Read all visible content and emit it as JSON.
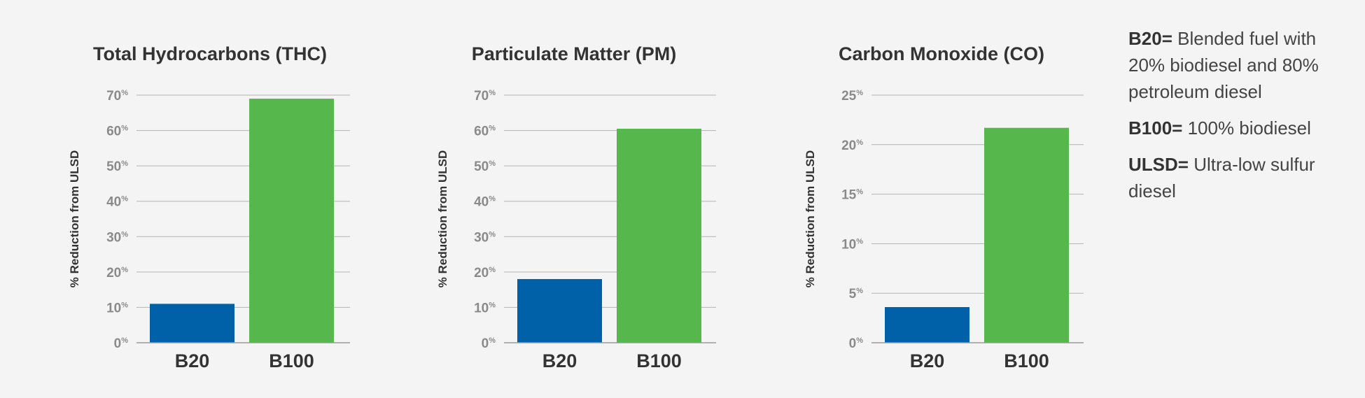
{
  "chart_data": [
    {
      "type": "bar",
      "title": "Total Hydrocarbons (THC)",
      "ylabel": "% Reduction from ULSD",
      "xlabel": "",
      "categories": [
        "B20",
        "B100"
      ],
      "values": [
        11,
        69
      ],
      "bar_colors": [
        "#0061a8",
        "#56b84c"
      ],
      "ylim": [
        0,
        70
      ],
      "yticks": [
        0,
        10,
        20,
        30,
        40,
        50,
        60,
        70
      ],
      "ytick_labels": [
        "0",
        "10",
        "20",
        "30",
        "40",
        "50",
        "60",
        "70"
      ],
      "tick_suffix": "%",
      "grid": true
    },
    {
      "type": "bar",
      "title": "Particulate Matter (PM)",
      "ylabel": "% Reduction from ULSD",
      "xlabel": "",
      "categories": [
        "B20",
        "B100"
      ],
      "values": [
        18,
        60.5
      ],
      "bar_colors": [
        "#0061a8",
        "#56b84c"
      ],
      "ylim": [
        0,
        70
      ],
      "yticks": [
        0,
        10,
        20,
        30,
        40,
        50,
        60,
        70
      ],
      "ytick_labels": [
        "0",
        "10",
        "20",
        "30",
        "40",
        "50",
        "60",
        "70"
      ],
      "tick_suffix": "%",
      "grid": true
    },
    {
      "type": "bar",
      "title": "Carbon Monoxide (CO)",
      "ylabel": "% Reduction from ULSD",
      "xlabel": "",
      "categories": [
        "B20",
        "B100"
      ],
      "values": [
        3.6,
        21.7
      ],
      "bar_colors": [
        "#0061a8",
        "#56b84c"
      ],
      "ylim": [
        0,
        25
      ],
      "yticks": [
        0,
        5,
        10,
        15,
        20,
        25
      ],
      "ytick_labels": [
        "0",
        "5",
        "10",
        "15",
        "20",
        "25"
      ],
      "tick_suffix": "%",
      "grid": true
    }
  ],
  "legend": {
    "items": [
      {
        "term": "B20=",
        "definition": " Blended fuel with 20% biodiesel and 80% petroleum diesel"
      },
      {
        "term": "B100=",
        "definition": " 100% biodiesel"
      },
      {
        "term": "ULSD=",
        "definition": " Ultra-low sulfur diesel"
      }
    ]
  },
  "colors": {
    "background": "#f4f4f4",
    "b20_bar": "#0061a8",
    "b100_bar": "#56b84c",
    "gridline": "#b3b3b3",
    "tick_text": "#8a8a8a"
  }
}
